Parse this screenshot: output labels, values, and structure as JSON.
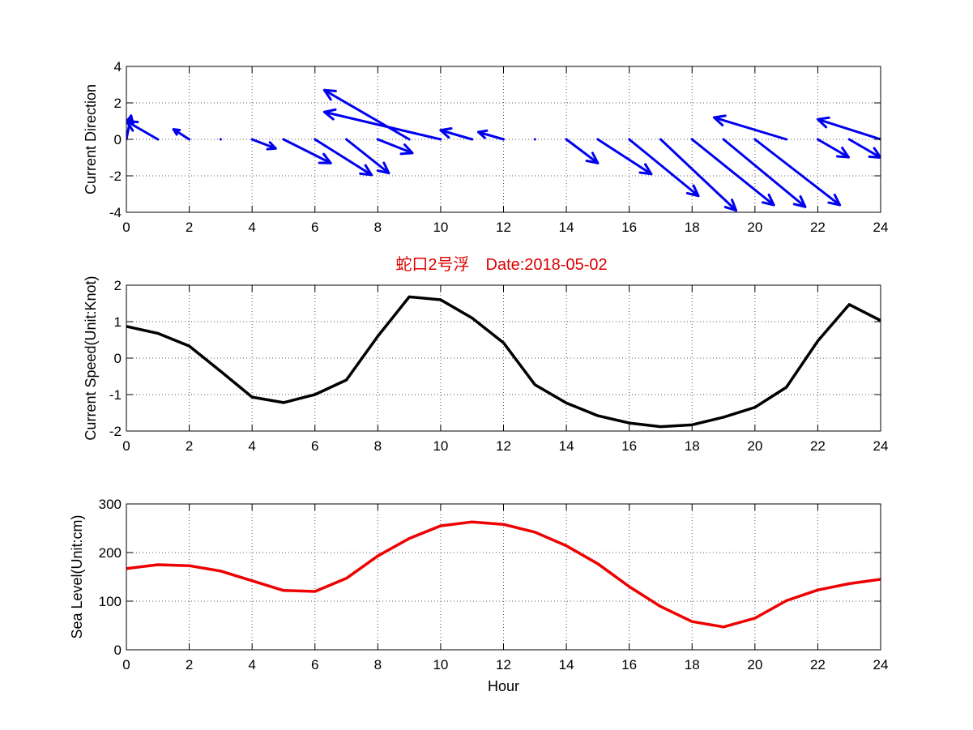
{
  "title": "蛇口2号浮　Date:2018-05-02",
  "title_color": "#dd0000",
  "chart_data": [
    {
      "type": "quiver",
      "ylabel": "Current Direction",
      "xlim": [
        0,
        24
      ],
      "ylim": [
        -4,
        4
      ],
      "xticks": [
        0,
        2,
        4,
        6,
        8,
        10,
        12,
        14,
        16,
        18,
        20,
        22,
        24
      ],
      "yticks": [
        -4,
        -2,
        0,
        2,
        4
      ],
      "color": "#0000ee",
      "grid": true,
      "x": [
        0,
        1,
        2,
        3,
        4,
        5,
        6,
        7,
        8,
        9,
        10,
        11,
        12,
        13,
        14,
        15,
        16,
        17,
        18,
        19,
        20,
        21,
        22,
        23,
        24
      ],
      "u": [
        0.15,
        -1.0,
        -0.5,
        0,
        0.75,
        1.5,
        1.8,
        1.35,
        1.1,
        -2.7,
        -3.7,
        -1.0,
        -0.8,
        0,
        1.0,
        1.7,
        2.2,
        2.4,
        2.6,
        2.6,
        2.7,
        -2.3,
        0.98,
        1.0,
        -2.0
      ],
      "v": [
        1.3,
        1.0,
        0.55,
        0,
        -0.5,
        -1.3,
        -1.95,
        -1.85,
        -0.75,
        2.7,
        1.5,
        0.5,
        0.4,
        0,
        -1.3,
        -1.9,
        -3.1,
        -3.9,
        -3.6,
        -3.7,
        -3.6,
        1.2,
        -0.98,
        -1.0,
        1.1
      ]
    },
    {
      "type": "line",
      "ylabel": "Current Speed(Unit:Knot)",
      "xlim": [
        0,
        24
      ],
      "ylim": [
        -2,
        2
      ],
      "xticks": [
        0,
        2,
        4,
        6,
        8,
        10,
        12,
        14,
        16,
        18,
        20,
        22,
        24
      ],
      "yticks": [
        -2,
        -1,
        0,
        1,
        2
      ],
      "color": "#000000",
      "grid": true,
      "x": [
        0,
        1,
        2,
        3,
        4,
        5,
        6,
        7,
        8,
        9,
        10,
        11,
        12,
        13,
        14,
        15,
        16,
        17,
        18,
        19,
        20,
        21,
        22,
        23,
        24
      ],
      "y": [
        0.87,
        0.68,
        0.33,
        -0.36,
        -1.07,
        -1.22,
        -1.0,
        -0.6,
        0.6,
        1.68,
        1.6,
        1.1,
        0.42,
        -0.73,
        -1.23,
        -1.58,
        -1.78,
        -1.88,
        -1.83,
        -1.62,
        -1.35,
        -0.8,
        0.47,
        1.47,
        1.03
      ]
    },
    {
      "type": "line",
      "ylabel": "Sea Level(Unit:cm)",
      "xlabel": "Hour",
      "xlim": [
        0,
        24
      ],
      "ylim": [
        0,
        300
      ],
      "xticks": [
        0,
        2,
        4,
        6,
        8,
        10,
        12,
        14,
        16,
        18,
        20,
        22,
        24
      ],
      "yticks": [
        0,
        100,
        200,
        300
      ],
      "color": "#ee0000",
      "grid": true,
      "x": [
        0,
        1,
        2,
        3,
        4,
        5,
        6,
        7,
        8,
        9,
        10,
        11,
        12,
        13,
        14,
        15,
        16,
        17,
        18,
        19,
        20,
        21,
        22,
        23,
        24
      ],
      "y": [
        167,
        175,
        173,
        162,
        142,
        122,
        120,
        147,
        193,
        229,
        255,
        263,
        258,
        242,
        214,
        177,
        130,
        89,
        58,
        47,
        65,
        101,
        123,
        136,
        145
      ]
    }
  ]
}
